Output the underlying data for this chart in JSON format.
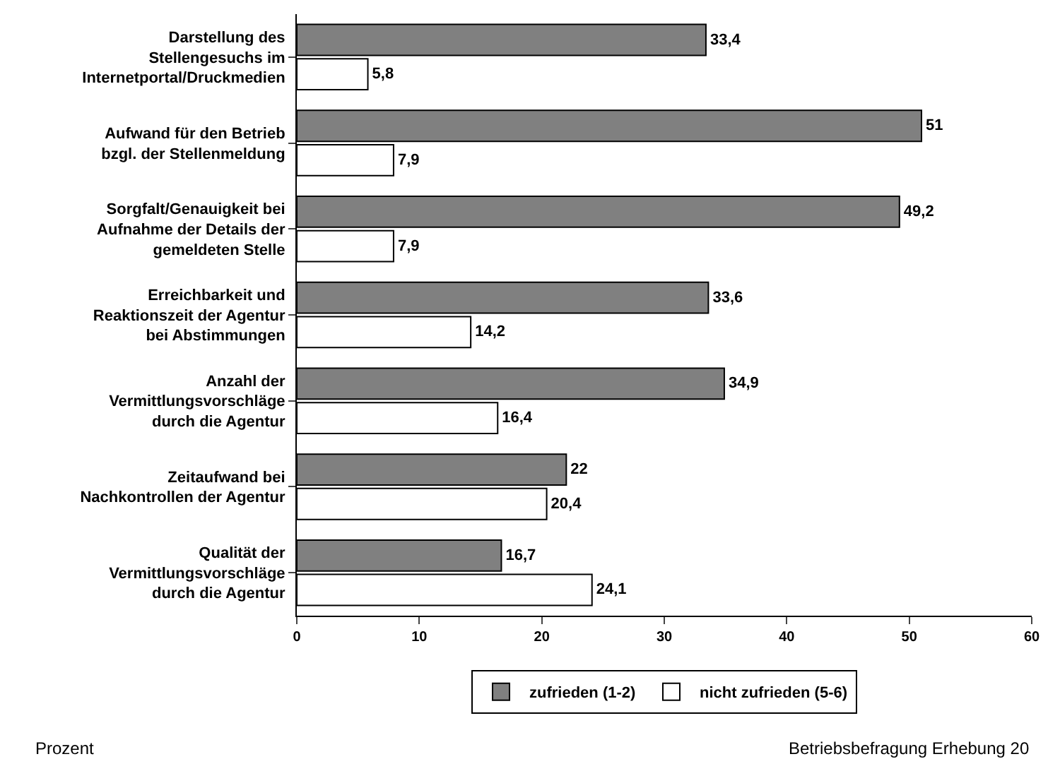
{
  "chart_data": {
    "type": "bar",
    "orientation": "horizontal",
    "categories": [
      "Darstellung des\nStellengesuchs im\nInternetportal/Druckmedien",
      "Aufwand für den Betrieb\nbzgl. der Stellenmeldung",
      "Sorgfalt/Genauigkeit bei\nAufnahme der Details der\ngemeldeten Stelle",
      "Erreichbarkeit und\nReaktionszeit der Agentur\nbei Abstimmungen",
      "Anzahl der\nVermittlungsvorschläge\ndurch die Agentur",
      "Zeitaufwand bei\nNachkontrollen der Agentur",
      "Qualität der\nVermittlungsvorschläge\ndurch die Agentur"
    ],
    "series": [
      {
        "name": "zufrieden (1-2)",
        "color": "#808080",
        "values": [
          33.4,
          51,
          49.2,
          33.6,
          34.9,
          22,
          16.7
        ],
        "value_labels": [
          "33,4",
          "51",
          "49,2",
          "33,6",
          "34,9",
          "22",
          "16,7"
        ]
      },
      {
        "name": "nicht zufrieden (5-6)",
        "color": "#ffffff",
        "values": [
          5.8,
          7.9,
          7.9,
          14.2,
          16.4,
          20.4,
          24.1
        ],
        "value_labels": [
          "5,8",
          "7,9",
          "7,9",
          "14,2",
          "16,4",
          "20,4",
          "24,1"
        ]
      }
    ],
    "xlim": [
      0,
      60
    ],
    "xticks": [
      0,
      10,
      20,
      30,
      40,
      50,
      60
    ],
    "grid": false,
    "legend": "bottom",
    "annotations": [
      "Prozent",
      "Betriebsbefragung Erhebung 20"
    ]
  }
}
